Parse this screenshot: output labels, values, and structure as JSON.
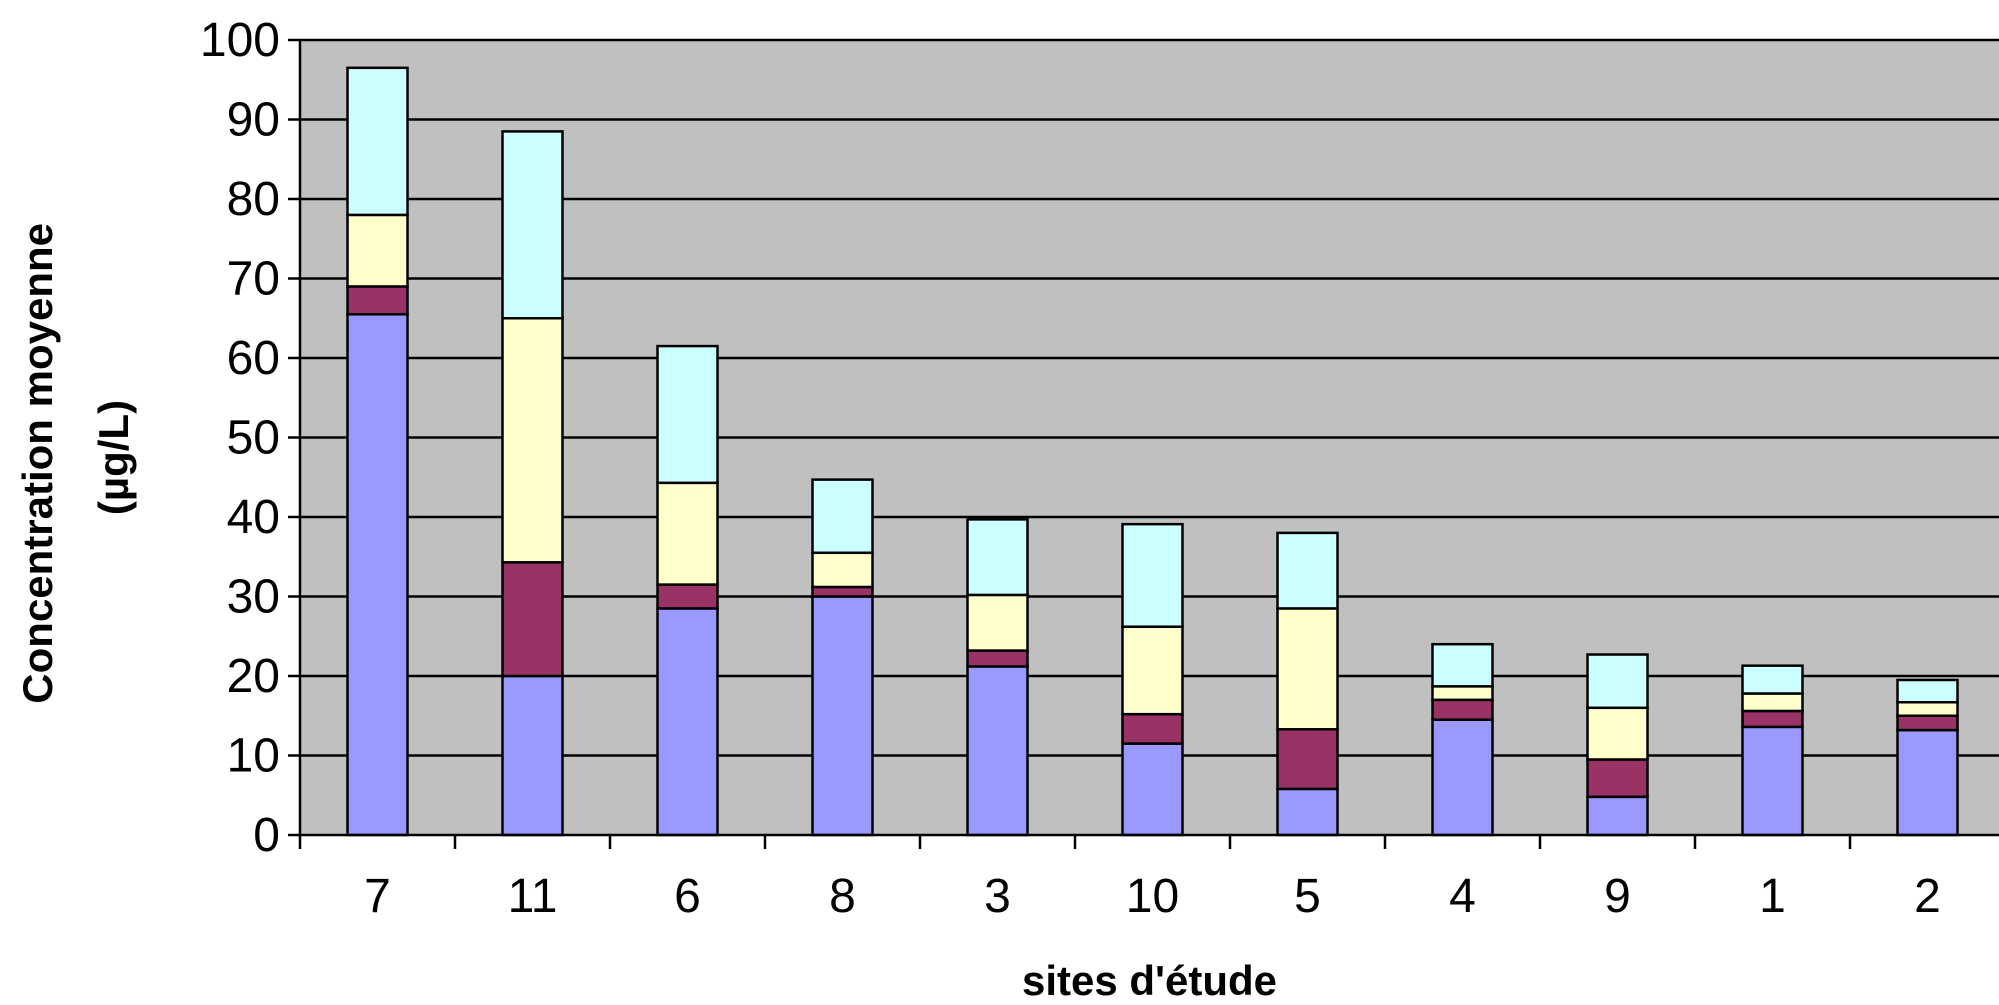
{
  "chart_data": {
    "type": "bar",
    "stacked": true,
    "title": "",
    "xlabel": "sites d'étude",
    "ylabel_line1": "Concentration moyenne",
    "ylabel_line2": "(µg/L)",
    "ylim": [
      0,
      100
    ],
    "ytick_step": 10,
    "yticks": [
      "0",
      "10",
      "20",
      "30",
      "40",
      "50",
      "60",
      "70",
      "80",
      "90",
      "100"
    ],
    "grid": true,
    "legend": "none",
    "categories": [
      "7",
      "11",
      "6",
      "8",
      "3",
      "10",
      "5",
      "4",
      "9",
      "1",
      "2"
    ],
    "series": [
      {
        "color": "#9999ff",
        "values": [
          65.5,
          20.0,
          28.5,
          30.0,
          21.2,
          11.5,
          5.8,
          14.5,
          4.8,
          13.6,
          13.2
        ]
      },
      {
        "color": "#993366",
        "values": [
          3.5,
          14.3,
          3.0,
          1.2,
          2.0,
          3.7,
          7.5,
          2.5,
          4.7,
          2.0,
          1.8
        ]
      },
      {
        "color": "#ffffcc",
        "values": [
          9.0,
          30.7,
          12.8,
          4.3,
          7.0,
          11.0,
          15.2,
          1.7,
          6.5,
          2.2,
          1.7
        ]
      },
      {
        "color": "#ccffff",
        "values": [
          18.5,
          23.5,
          17.2,
          9.2,
          9.5,
          12.9,
          9.5,
          5.3,
          6.7,
          3.5,
          2.8
        ]
      }
    ],
    "plot_background": "#c0c0c0"
  }
}
